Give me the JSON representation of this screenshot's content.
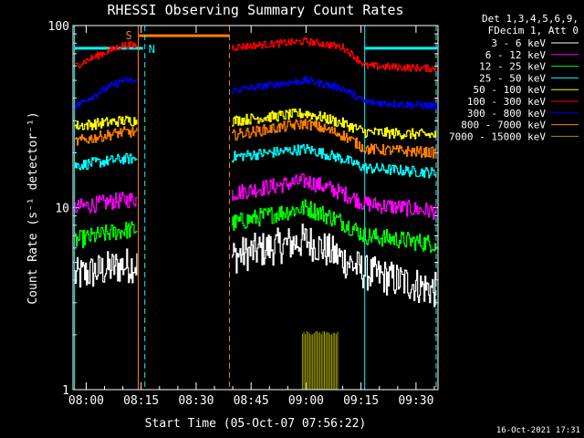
{
  "chart_data": {
    "type": "line",
    "title": "RHESSI Observing Summary Count Rates",
    "xlabel": "Start Time (05-Oct-07 07:56:22)",
    "ylabel": "Count Rate (s⁻¹ detector⁻¹)",
    "yscale": "log",
    "ylim": [
      1,
      100
    ],
    "xlim_minutes": [
      -3.6,
      96
    ],
    "x_tick_labels": [
      "08:00",
      "08:15",
      "08:30",
      "08:45",
      "09:00",
      "09:15",
      "09:30"
    ],
    "x_tick_minutes": [
      0,
      15,
      30,
      45,
      60,
      75,
      90
    ],
    "y_tick_labels": [
      "1",
      "10",
      "100"
    ],
    "legend_header": [
      "Det 1,3,4,5,6,9,",
      "FDecim 1, Att 0"
    ],
    "legend_position": "right",
    "date_stamp": "16-Oct-2021 17:31",
    "gap_minutes": [
      14.0,
      39.7
    ],
    "series": [
      {
        "name": "3 - 6 keV",
        "color": "#ffffff",
        "shape": [
          4.2,
          4.8,
          5.4,
          6.6,
          5.2,
          4.4,
          3.5
        ],
        "noise": 0.1
      },
      {
        "name": "6 - 12 keV",
        "color": "#ff00ff",
        "shape": [
          10.0,
          11.0,
          12.0,
          14.0,
          12.0,
          10.5,
          9.5
        ],
        "noise": 0.045
      },
      {
        "name": "12 - 25 keV",
        "color": "#00ff00",
        "shape": [
          6.6,
          7.5,
          8.2,
          10.0,
          8.3,
          7.0,
          6.3
        ],
        "noise": 0.05
      },
      {
        "name": "25 - 50 keV",
        "color": "#00ffff",
        "shape": [
          17.0,
          18.5,
          19.0,
          21.0,
          18.5,
          16.5,
          15.5
        ],
        "noise": 0.03
      },
      {
        "name": "50 - 100 keV",
        "color": "#ffff00",
        "shape": [
          28.0,
          30.0,
          30.0,
          33.0,
          29.0,
          26.0,
          25.0
        ],
        "noise": 0.03
      },
      {
        "name": "100 - 300 keV",
        "color": "#ff0000",
        "shape": [
          60.0,
          78.0,
          76.0,
          82.0,
          76.0,
          60.0,
          58.0
        ],
        "noise": 0.02
      },
      {
        "name": "300 - 800 keV",
        "color": "#0000ff",
        "shape": [
          36.0,
          50.0,
          44.0,
          50.0,
          45.0,
          38.0,
          36.0
        ],
        "noise": 0.02
      },
      {
        "name": "800 - 7000 keV",
        "color": "#ff8000",
        "shape": [
          23.0,
          26.0,
          25.0,
          29.0,
          25.0,
          21.0,
          20.0
        ],
        "noise": 0.03
      },
      {
        "name": "7000 - 15000 keV",
        "color": "#999900",
        "shape": null,
        "noise": 0
      }
    ],
    "attenuator_labels": {
      "s": "S",
      "n": "N"
    }
  }
}
